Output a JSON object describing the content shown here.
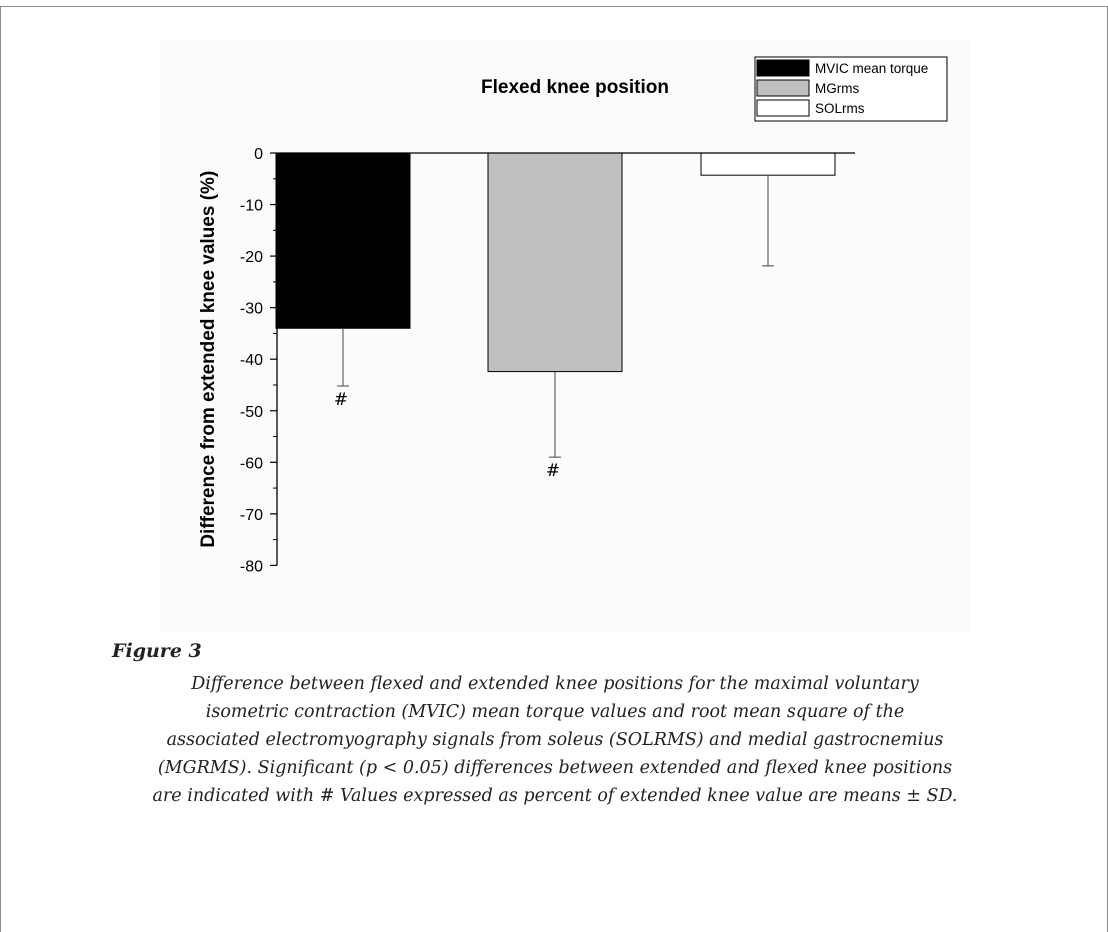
{
  "chart_data": {
    "type": "bar",
    "title": "Flexed knee position",
    "ylabel": "Difference from extended knee values (%)",
    "xlabel": "",
    "ylim": [
      -80,
      0
    ],
    "yticks": [
      0,
      -10,
      -20,
      -30,
      -40,
      -50,
      -60,
      -70,
      -80
    ],
    "series": [
      {
        "name": "MVIC mean torque",
        "value": -34.0,
        "sd": 11.2,
        "fill": "#000000",
        "significant": true
      },
      {
        "name": "MGrms",
        "value": -42.4,
        "sd": 16.6,
        "fill": "#c0c0c0",
        "significant": true
      },
      {
        "name": "SOLrms",
        "value": -4.3,
        "sd": 17.6,
        "fill": "#ffffff",
        "significant": false
      }
    ],
    "significance_marker": "#",
    "legend_position": "top-right",
    "grid": false
  },
  "caption": {
    "label": "Figure 3",
    "lines": [
      "Difference between flexed and extended knee positions for the maximal voluntary",
      "isometric contraction (MVIC) mean torque values and root mean square of the",
      "associated electromyography signals from soleus (SOLRMS) and medial gastrocnemius",
      "(MGRMS). Significant (p < 0.05) differences between extended and flexed knee positions",
      "are indicated with # Values expressed as percent of extended knee value are means ± SD."
    ]
  }
}
